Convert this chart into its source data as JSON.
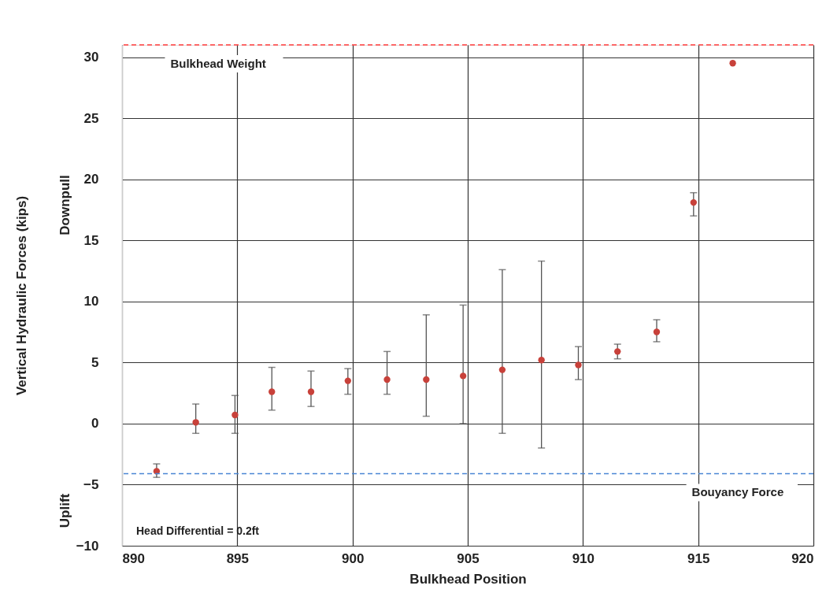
{
  "chart_data": {
    "type": "scatter",
    "xlabel": "Bulkhead Position",
    "ylabel": "Vertical Hydraulic Forces (kips)",
    "x": [
      891.5,
      893.2,
      894.9,
      896.5,
      898.2,
      899.8,
      901.5,
      903.2,
      904.8,
      906.5,
      908.2,
      909.8,
      911.5,
      913.2,
      914.8,
      916.5
    ],
    "series": [
      {
        "color": "#c8413a",
        "values": [
          -3.9,
          0.1,
          0.7,
          2.6,
          2.6,
          3.5,
          3.6,
          3.6,
          3.9,
          4.4,
          5.2,
          4.8,
          5.9,
          7.5,
          18.1,
          29.5
        ],
        "errors": [
          [
            -4.4,
            -3.3
          ],
          [
            -0.8,
            1.6
          ],
          [
            -0.8,
            2.3
          ],
          [
            1.1,
            4.6
          ],
          [
            1.4,
            4.3
          ],
          [
            2.4,
            4.5
          ],
          [
            2.4,
            5.9
          ],
          [
            0.6,
            8.9
          ],
          [
            0.0,
            9.7
          ],
          [
            -0.8,
            12.6
          ],
          [
            -2.0,
            13.3
          ],
          [
            3.6,
            6.3
          ],
          [
            5.3,
            6.5
          ],
          [
            6.7,
            8.5
          ],
          [
            17.0,
            18.9
          ],
          null
        ]
      }
    ],
    "xlim": [
      890,
      920
    ],
    "xticks": [
      890,
      895,
      900,
      905,
      910,
      915,
      920
    ],
    "ylim": [
      -10,
      31
    ],
    "yticks": [
      -10,
      -5,
      0,
      5,
      10,
      15,
      20,
      25,
      30
    ],
    "grid": true,
    "marker": "circle",
    "ref_lines": [
      {
        "axis": "y",
        "value": 31,
        "label": "Bulkhead Weight",
        "color": "#ff3b3b",
        "line_style": "dashed"
      },
      {
        "axis": "y",
        "value": -4.1,
        "label": "Bouyancy Force",
        "color": "#4a86d4",
        "line_style": "dashed"
      }
    ],
    "annotations": [
      "Downpull",
      "Uplift",
      "Head Differential = 0.2ft"
    ]
  }
}
